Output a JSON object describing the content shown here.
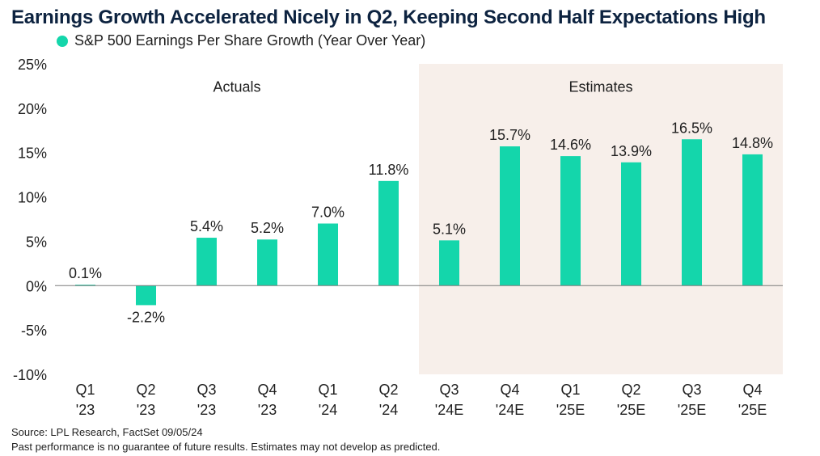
{
  "title": "Earnings Growth Accelerated Nicely in Q2, Keeping Second Half Expectations High",
  "legend": {
    "label": "S&P 500 Earnings Per Share Growth (Year Over Year)",
    "color": "#14d6ab"
  },
  "footer": {
    "source": "Source: LPL Research, FactSet 09/05/24",
    "disclaimer": "Past performance is no guarantee of future results. Estimates may not develop as predicted."
  },
  "chart_data": {
    "type": "bar",
    "categories": [
      [
        "Q1",
        "'23"
      ],
      [
        "Q2",
        "'23"
      ],
      [
        "Q3",
        "'23"
      ],
      [
        "Q4",
        "'23"
      ],
      [
        "Q1",
        "'24"
      ],
      [
        "Q2",
        "'24"
      ],
      [
        "Q3",
        "'24E"
      ],
      [
        "Q4",
        "'24E"
      ],
      [
        "Q1",
        "'25E"
      ],
      [
        "Q2",
        "'25E"
      ],
      [
        "Q3",
        "'25E"
      ],
      [
        "Q4",
        "'25E"
      ]
    ],
    "values": [
      0.1,
      -2.2,
      5.4,
      5.2,
      7.0,
      11.8,
      5.1,
      15.7,
      14.6,
      13.9,
      16.5,
      14.8
    ],
    "data_labels": [
      "0.1%",
      "-2.2%",
      "5.4%",
      "5.2%",
      "7.0%",
      "11.8%",
      "5.1%",
      "15.7%",
      "14.6%",
      "13.9%",
      "16.5%",
      "14.8%"
    ],
    "ylim": [
      -10,
      25
    ],
    "yticks": [
      -10,
      -5,
      0,
      5,
      10,
      15,
      20,
      25
    ],
    "ytick_labels": [
      "-10%",
      "-5%",
      "0%",
      "5%",
      "10%",
      "15%",
      "20%",
      "25%"
    ],
    "regions": [
      {
        "label": "Actuals",
        "start_index": 0,
        "end_index": 5,
        "shaded": false
      },
      {
        "label": "Estimates",
        "start_index": 6,
        "end_index": 11,
        "shaded": true
      }
    ],
    "bar_color": "#14d6ab",
    "shade_color": "#f7efea",
    "xlabel": "",
    "ylabel": ""
  }
}
